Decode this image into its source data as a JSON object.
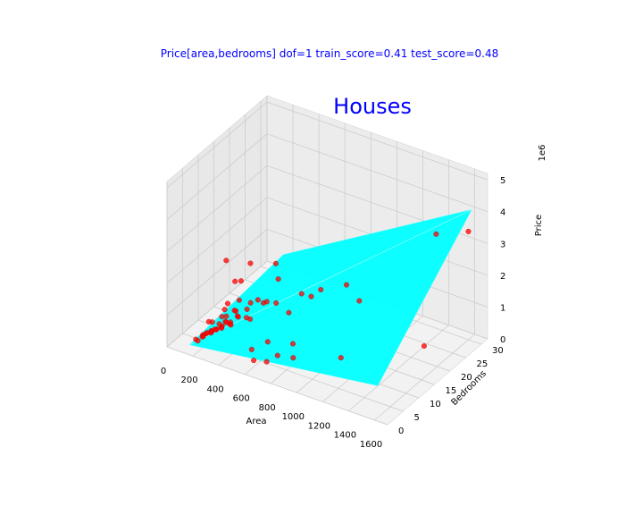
{
  "chart_data": {
    "type": "scatter",
    "projection": "3d",
    "suptitle": "Price[area,bedrooms]  dof=1  train_score=0.41  test_score=0.48",
    "title": "Houses",
    "xlabel": "Area",
    "ylabel": "Bedrooms",
    "zlabel": "Price",
    "z_offset_label": "1e6",
    "xlim": [
      0,
      1700
    ],
    "ylim": [
      0,
      32
    ],
    "zlim": [
      0,
      5.2
    ],
    "xticks": [
      0,
      200,
      400,
      600,
      800,
      1000,
      1200,
      1400,
      1600
    ],
    "yticks": [
      0,
      5,
      10,
      15,
      20,
      25,
      30
    ],
    "zticks": [
      0,
      1,
      2,
      3,
      4,
      5
    ],
    "grid": true,
    "colors": {
      "points": "#ff0000",
      "surface": "#00ffff",
      "suptitle": "#0000ff",
      "title": "#0000ff",
      "pane": "#f2f2f2"
    },
    "points": [
      {
        "x": 150,
        "y": 3,
        "z": 0.2
      },
      {
        "x": 180,
        "y": 4,
        "z": 0.3
      },
      {
        "x": 200,
        "y": 3,
        "z": 0.35
      },
      {
        "x": 220,
        "y": 5,
        "z": 0.4
      },
      {
        "x": 240,
        "y": 4,
        "z": 0.45
      },
      {
        "x": 260,
        "y": 5,
        "z": 0.5
      },
      {
        "x": 280,
        "y": 6,
        "z": 0.55
      },
      {
        "x": 300,
        "y": 5,
        "z": 0.6
      },
      {
        "x": 320,
        "y": 7,
        "z": 0.65
      },
      {
        "x": 340,
        "y": 6,
        "z": 0.7
      },
      {
        "x": 350,
        "y": 8,
        "z": 0.8
      },
      {
        "x": 380,
        "y": 7,
        "z": 0.9
      },
      {
        "x": 400,
        "y": 9,
        "z": 1.0
      },
      {
        "x": 420,
        "y": 8,
        "z": 0.85
      },
      {
        "x": 200,
        "y": 6,
        "z": 0.25
      },
      {
        "x": 250,
        "y": 7,
        "z": 0.4
      },
      {
        "x": 300,
        "y": 8,
        "z": 0.45
      },
      {
        "x": 160,
        "y": 5,
        "z": 0.15
      },
      {
        "x": 190,
        "y": 2,
        "z": 0.3
      },
      {
        "x": 230,
        "y": 3,
        "z": 0.5
      },
      {
        "x": 270,
        "y": 4,
        "z": 0.6
      },
      {
        "x": 310,
        "y": 3,
        "z": 0.75
      },
      {
        "x": 330,
        "y": 5,
        "z": 0.85
      },
      {
        "x": 360,
        "y": 4,
        "z": 0.95
      },
      {
        "x": 210,
        "y": 8,
        "z": 0.35
      },
      {
        "x": 240,
        "y": 9,
        "z": 0.55
      },
      {
        "x": 290,
        "y": 10,
        "z": 0.7
      },
      {
        "x": 260,
        "y": 2,
        "z": 0.65
      },
      {
        "x": 180,
        "y": 7,
        "z": 0.45
      },
      {
        "x": 300,
        "y": 6,
        "z": 1.1
      },
      {
        "x": 350,
        "y": 3,
        "z": 1.2
      },
      {
        "x": 400,
        "y": 5,
        "z": 1.3
      },
      {
        "x": 420,
        "y": 2,
        "z": 1.8
      },
      {
        "x": 380,
        "y": 6,
        "z": 2.1
      },
      {
        "x": 360,
        "y": 4,
        "z": 2.9
      },
      {
        "x": 450,
        "y": 8,
        "z": 2.6
      },
      {
        "x": 500,
        "y": 6,
        "z": 1.6
      },
      {
        "x": 550,
        "y": 8,
        "z": 1.5
      },
      {
        "x": 600,
        "y": 10,
        "z": 1.4
      },
      {
        "x": 520,
        "y": 5,
        "z": 1.2
      },
      {
        "x": 480,
        "y": 12,
        "z": 1.1
      },
      {
        "x": 650,
        "y": 12,
        "z": 1.0
      },
      {
        "x": 700,
        "y": 14,
        "z": 1.5
      },
      {
        "x": 750,
        "y": 15,
        "z": 1.4
      },
      {
        "x": 800,
        "y": 16,
        "z": 1.6
      },
      {
        "x": 580,
        "y": 3,
        "z": 0.5
      },
      {
        "x": 620,
        "y": 2,
        "z": 0.3
      },
      {
        "x": 680,
        "y": 4,
        "z": 0.8
      },
      {
        "x": 720,
        "y": 2,
        "z": 0.4
      },
      {
        "x": 780,
        "y": 3,
        "z": 0.6
      },
      {
        "x": 850,
        "y": 5,
        "z": 0.9
      },
      {
        "x": 900,
        "y": 3,
        "z": 0.7
      },
      {
        "x": 950,
        "y": 18,
        "z": 1.8
      },
      {
        "x": 1000,
        "y": 20,
        "z": 1.2
      },
      {
        "x": 1100,
        "y": 10,
        "z": 0.4
      },
      {
        "x": 1500,
        "y": 20,
        "z": 0.5
      },
      {
        "x": 1400,
        "y": 28,
        "z": 3.2
      },
      {
        "x": 1600,
        "y": 30,
        "z": 3.4
      },
      {
        "x": 550,
        "y": 12,
        "z": 2.4
      },
      {
        "x": 450,
        "y": 5,
        "z": 2.3
      },
      {
        "x": 250,
        "y": 3,
        "z": 0.9
      },
      {
        "x": 340,
        "y": 9,
        "z": 1.2
      },
      {
        "x": 460,
        "y": 10,
        "z": 1.3
      },
      {
        "x": 520,
        "y": 14,
        "z": 1.7
      }
    ],
    "surface": {
      "type": "fitted-plane",
      "corners": [
        {
          "x": 150,
          "y": 1,
          "z": 0.2
        },
        {
          "x": 1600,
          "y": 1,
          "z": 1.0
        },
        {
          "x": 1600,
          "y": 31,
          "z": 4.0
        },
        {
          "x": 150,
          "y": 31,
          "z": 0.5
        }
      ]
    }
  }
}
